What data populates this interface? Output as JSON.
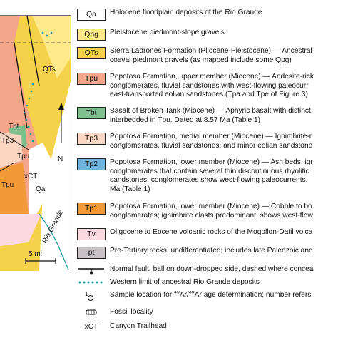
{
  "map": {
    "labels": {
      "qts": "QTs",
      "tbt": "Tbt",
      "tp3": "Tp3",
      "tpu": "Tpu",
      "xct": "xCT",
      "qa": "Qa",
      "river": "Rio Grande",
      "north": "N",
      "scale": "5 mi"
    }
  },
  "legend": [
    {
      "code": "Qa",
      "color": "#ffffff",
      "text": "Holocene floodplain deposits of the Rio Grande"
    },
    {
      "code": "Qpg",
      "color": "#ffe98a",
      "text": "Pleistocene piedmont-slope gravels"
    },
    {
      "code": "QTs",
      "color": "#f5d24a",
      "text": "Sierra Ladrones Formation (Pliocene-Pleistocene) — Ancestral",
      "text2": "coeval piedmont gravels (as mapped include some Qpg)"
    },
    {
      "code": "Tpu",
      "color": "#f4a58a",
      "text": "Popotosa Formation, upper member (Miocene) — Andesite-rick",
      "text2": "conglomerates, fluvial sandstones with west-flowing paleocurr",
      "text3": "east-transported eolian sandstones (Tpa and Tpe of Figure 3)"
    },
    {
      "code": "Tbt",
      "color": "#7fbf8e",
      "text": "Basalt of Broken Tank (Miocene) — Aphyric basalt with distinct",
      "text2": "interbedded in Tpu. Dated at 8.57 Ma (Table 1)"
    },
    {
      "code": "Tp3",
      "color": "#fbd6c2",
      "text": "Popotosa Formation, medial member (Miocene) — Ignimbrite-r",
      "text2": "conglomerates, fluvial sandstones, and minor eolian sandstone"
    },
    {
      "code": "Tp2",
      "color": "#6fb4dd",
      "text": "Popotosa Formation, lower member (Miocene) — Ash beds, igr",
      "text2": "conglomerates that contain several thin discontinuous rhyolitic",
      "text3": "sandstones; conglomerates show west-flowing paleocurrents.",
      "text4": "Ma (Table 1)"
    },
    {
      "code": "Tp1",
      "color": "#f29a3a",
      "text": "Popotosa Formation, lower member (Miocene) — Cobble to bo",
      "text2": "conglomerates; ignimbrite clasts predominant; shows west-flow"
    },
    {
      "code": "Tv",
      "color": "#fbd9e0",
      "text": "Oligocene to Eocene volcanic rocks of the Mogollon-Datil volca"
    },
    {
      "code": "pt",
      "color": "#c9c2c6",
      "text": "Pre-Tertiary rocks, undifferentiated; includes late Paleozoic and"
    }
  ],
  "symbols": {
    "fault": "Normal fault; ball on down-dropped side, dashed where concea",
    "western_limit": "Western limit of ancestral Rio Grande deposits",
    "sample_pre": "Sample location for ",
    "sample_sup1": "40",
    "sample_mid": "Ar/",
    "sample_sup2": "39",
    "sample_post": "Ar age determination; number refers",
    "sample_number": "1",
    "fossil": "Fossil locality",
    "trailhead_code": "xCT",
    "trailhead": "Canyon Trailhead"
  }
}
